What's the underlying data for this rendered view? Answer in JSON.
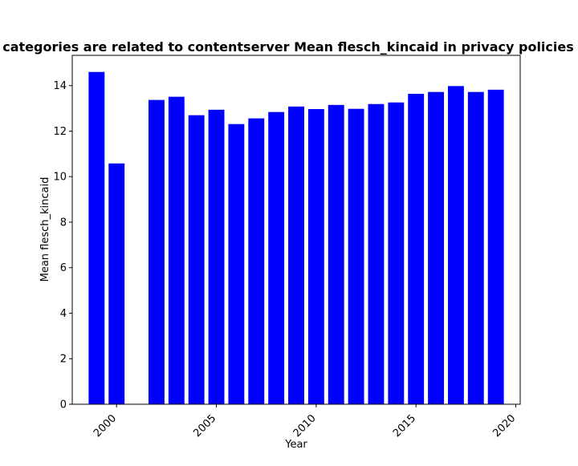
{
  "chart_data": {
    "type": "bar",
    "title": "categories are related to contentserver Mean flesch_kincaid in privacy policies",
    "xlabel": "Year",
    "ylabel": "Mean flesch_kincaid",
    "x": [
      1999,
      2000,
      2002,
      2003,
      2004,
      2005,
      2006,
      2007,
      2008,
      2009,
      2010,
      2011,
      2012,
      2013,
      2014,
      2015,
      2016,
      2017,
      2018,
      2019
    ],
    "values": [
      14.6,
      10.58,
      13.37,
      13.51,
      12.7,
      12.94,
      12.31,
      12.56,
      12.84,
      13.08,
      12.97,
      13.15,
      12.98,
      13.19,
      13.26,
      13.64,
      13.72,
      13.98,
      13.72,
      13.82
    ],
    "xlim": [
      1997.78,
      2020.22
    ],
    "ylim": [
      0,
      15.33
    ],
    "xticks": [
      2000,
      2005,
      2010,
      2015,
      2020
    ],
    "xtick_labels": [
      "2000",
      "2005",
      "2010",
      "2015",
      "2020"
    ],
    "yticks": [
      0,
      2,
      4,
      6,
      8,
      10,
      12,
      14
    ],
    "ytick_labels": [
      "0",
      "2",
      "4",
      "6",
      "8",
      "10",
      "12",
      "14"
    ],
    "bar_color": "#0000ff",
    "grid": false,
    "legend": "none"
  }
}
